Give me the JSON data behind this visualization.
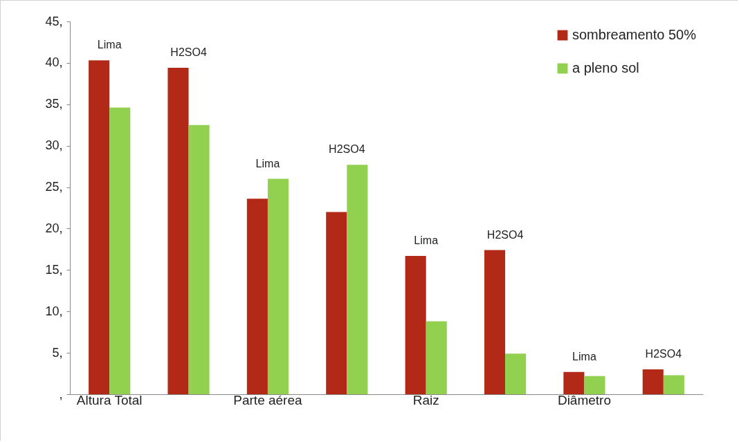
{
  "chart_data": {
    "type": "bar",
    "categories": [
      "Lima",
      "H2SO4",
      "Lima",
      "H2SO4",
      "Lima",
      "H2SO4",
      "Lima",
      "H2SO4"
    ],
    "series": [
      {
        "name": "sombreamento 50%",
        "color": "#b22a17",
        "values": [
          40.3,
          39.4,
          23.6,
          22.0,
          16.7,
          17.4,
          2.7,
          3.0
        ]
      },
      {
        "name": "a pleno sol",
        "color": "#92d050",
        "values": [
          34.6,
          32.5,
          26.0,
          27.7,
          8.8,
          4.9,
          2.2,
          2.3
        ]
      }
    ],
    "annotations": [
      "Altura Total",
      "Parte aérea",
      "Raiz",
      "Diâmetro"
    ],
    "ylim": [
      0,
      45
    ],
    "yticks": [
      {
        "value": 0,
        "label": ","
      },
      {
        "value": 5,
        "label": "5,"
      },
      {
        "value": 10,
        "label": "10,"
      },
      {
        "value": 15,
        "label": "15,"
      },
      {
        "value": 20,
        "label": "20,"
      },
      {
        "value": 25,
        "label": "25,"
      },
      {
        "value": 30,
        "label": "30,"
      },
      {
        "value": 35,
        "label": "35,"
      },
      {
        "value": 40,
        "label": "40,"
      },
      {
        "value": 45,
        "label": "45,"
      }
    ],
    "grid": false,
    "legend": "top right"
  }
}
